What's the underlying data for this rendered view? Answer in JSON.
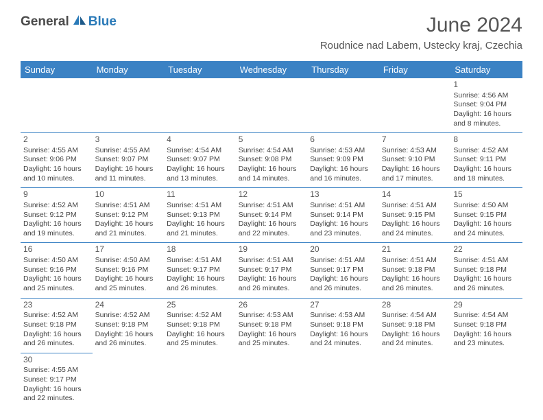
{
  "logo": {
    "textGeneral": "General",
    "textBlue": "Blue"
  },
  "title": "June 2024",
  "location": "Roudnice nad Labem, Ustecky kraj, Czechia",
  "dayHeaders": [
    "Sunday",
    "Monday",
    "Tuesday",
    "Wednesday",
    "Thursday",
    "Friday",
    "Saturday"
  ],
  "colors": {
    "headerBg": "#3b82c4",
    "headerText": "#ffffff",
    "cellBorder": "#3b82c4",
    "bodyText": "#444444",
    "logoBlue": "#2a7ab8",
    "logoGray": "#4a4a4a"
  },
  "weeks": [
    [
      null,
      null,
      null,
      null,
      null,
      null,
      {
        "day": "1",
        "sunrise": "Sunrise: 4:56 AM",
        "sunset": "Sunset: 9:04 PM",
        "daylight1": "Daylight: 16 hours",
        "daylight2": "and 8 minutes."
      }
    ],
    [
      {
        "day": "2",
        "sunrise": "Sunrise: 4:55 AM",
        "sunset": "Sunset: 9:06 PM",
        "daylight1": "Daylight: 16 hours",
        "daylight2": "and 10 minutes."
      },
      {
        "day": "3",
        "sunrise": "Sunrise: 4:55 AM",
        "sunset": "Sunset: 9:07 PM",
        "daylight1": "Daylight: 16 hours",
        "daylight2": "and 11 minutes."
      },
      {
        "day": "4",
        "sunrise": "Sunrise: 4:54 AM",
        "sunset": "Sunset: 9:07 PM",
        "daylight1": "Daylight: 16 hours",
        "daylight2": "and 13 minutes."
      },
      {
        "day": "5",
        "sunrise": "Sunrise: 4:54 AM",
        "sunset": "Sunset: 9:08 PM",
        "daylight1": "Daylight: 16 hours",
        "daylight2": "and 14 minutes."
      },
      {
        "day": "6",
        "sunrise": "Sunrise: 4:53 AM",
        "sunset": "Sunset: 9:09 PM",
        "daylight1": "Daylight: 16 hours",
        "daylight2": "and 16 minutes."
      },
      {
        "day": "7",
        "sunrise": "Sunrise: 4:53 AM",
        "sunset": "Sunset: 9:10 PM",
        "daylight1": "Daylight: 16 hours",
        "daylight2": "and 17 minutes."
      },
      {
        "day": "8",
        "sunrise": "Sunrise: 4:52 AM",
        "sunset": "Sunset: 9:11 PM",
        "daylight1": "Daylight: 16 hours",
        "daylight2": "and 18 minutes."
      }
    ],
    [
      {
        "day": "9",
        "sunrise": "Sunrise: 4:52 AM",
        "sunset": "Sunset: 9:12 PM",
        "daylight1": "Daylight: 16 hours",
        "daylight2": "and 19 minutes."
      },
      {
        "day": "10",
        "sunrise": "Sunrise: 4:51 AM",
        "sunset": "Sunset: 9:12 PM",
        "daylight1": "Daylight: 16 hours",
        "daylight2": "and 21 minutes."
      },
      {
        "day": "11",
        "sunrise": "Sunrise: 4:51 AM",
        "sunset": "Sunset: 9:13 PM",
        "daylight1": "Daylight: 16 hours",
        "daylight2": "and 21 minutes."
      },
      {
        "day": "12",
        "sunrise": "Sunrise: 4:51 AM",
        "sunset": "Sunset: 9:14 PM",
        "daylight1": "Daylight: 16 hours",
        "daylight2": "and 22 minutes."
      },
      {
        "day": "13",
        "sunrise": "Sunrise: 4:51 AM",
        "sunset": "Sunset: 9:14 PM",
        "daylight1": "Daylight: 16 hours",
        "daylight2": "and 23 minutes."
      },
      {
        "day": "14",
        "sunrise": "Sunrise: 4:51 AM",
        "sunset": "Sunset: 9:15 PM",
        "daylight1": "Daylight: 16 hours",
        "daylight2": "and 24 minutes."
      },
      {
        "day": "15",
        "sunrise": "Sunrise: 4:50 AM",
        "sunset": "Sunset: 9:15 PM",
        "daylight1": "Daylight: 16 hours",
        "daylight2": "and 24 minutes."
      }
    ],
    [
      {
        "day": "16",
        "sunrise": "Sunrise: 4:50 AM",
        "sunset": "Sunset: 9:16 PM",
        "daylight1": "Daylight: 16 hours",
        "daylight2": "and 25 minutes."
      },
      {
        "day": "17",
        "sunrise": "Sunrise: 4:50 AM",
        "sunset": "Sunset: 9:16 PM",
        "daylight1": "Daylight: 16 hours",
        "daylight2": "and 25 minutes."
      },
      {
        "day": "18",
        "sunrise": "Sunrise: 4:51 AM",
        "sunset": "Sunset: 9:17 PM",
        "daylight1": "Daylight: 16 hours",
        "daylight2": "and 26 minutes."
      },
      {
        "day": "19",
        "sunrise": "Sunrise: 4:51 AM",
        "sunset": "Sunset: 9:17 PM",
        "daylight1": "Daylight: 16 hours",
        "daylight2": "and 26 minutes."
      },
      {
        "day": "20",
        "sunrise": "Sunrise: 4:51 AM",
        "sunset": "Sunset: 9:17 PM",
        "daylight1": "Daylight: 16 hours",
        "daylight2": "and 26 minutes."
      },
      {
        "day": "21",
        "sunrise": "Sunrise: 4:51 AM",
        "sunset": "Sunset: 9:18 PM",
        "daylight1": "Daylight: 16 hours",
        "daylight2": "and 26 minutes."
      },
      {
        "day": "22",
        "sunrise": "Sunrise: 4:51 AM",
        "sunset": "Sunset: 9:18 PM",
        "daylight1": "Daylight: 16 hours",
        "daylight2": "and 26 minutes."
      }
    ],
    [
      {
        "day": "23",
        "sunrise": "Sunrise: 4:52 AM",
        "sunset": "Sunset: 9:18 PM",
        "daylight1": "Daylight: 16 hours",
        "daylight2": "and 26 minutes."
      },
      {
        "day": "24",
        "sunrise": "Sunrise: 4:52 AM",
        "sunset": "Sunset: 9:18 PM",
        "daylight1": "Daylight: 16 hours",
        "daylight2": "and 26 minutes."
      },
      {
        "day": "25",
        "sunrise": "Sunrise: 4:52 AM",
        "sunset": "Sunset: 9:18 PM",
        "daylight1": "Daylight: 16 hours",
        "daylight2": "and 25 minutes."
      },
      {
        "day": "26",
        "sunrise": "Sunrise: 4:53 AM",
        "sunset": "Sunset: 9:18 PM",
        "daylight1": "Daylight: 16 hours",
        "daylight2": "and 25 minutes."
      },
      {
        "day": "27",
        "sunrise": "Sunrise: 4:53 AM",
        "sunset": "Sunset: 9:18 PM",
        "daylight1": "Daylight: 16 hours",
        "daylight2": "and 24 minutes."
      },
      {
        "day": "28",
        "sunrise": "Sunrise: 4:54 AM",
        "sunset": "Sunset: 9:18 PM",
        "daylight1": "Daylight: 16 hours",
        "daylight2": "and 24 minutes."
      },
      {
        "day": "29",
        "sunrise": "Sunrise: 4:54 AM",
        "sunset": "Sunset: 9:18 PM",
        "daylight1": "Daylight: 16 hours",
        "daylight2": "and 23 minutes."
      }
    ],
    [
      {
        "day": "30",
        "sunrise": "Sunrise: 4:55 AM",
        "sunset": "Sunset: 9:17 PM",
        "daylight1": "Daylight: 16 hours",
        "daylight2": "and 22 minutes."
      },
      null,
      null,
      null,
      null,
      null,
      null
    ]
  ]
}
